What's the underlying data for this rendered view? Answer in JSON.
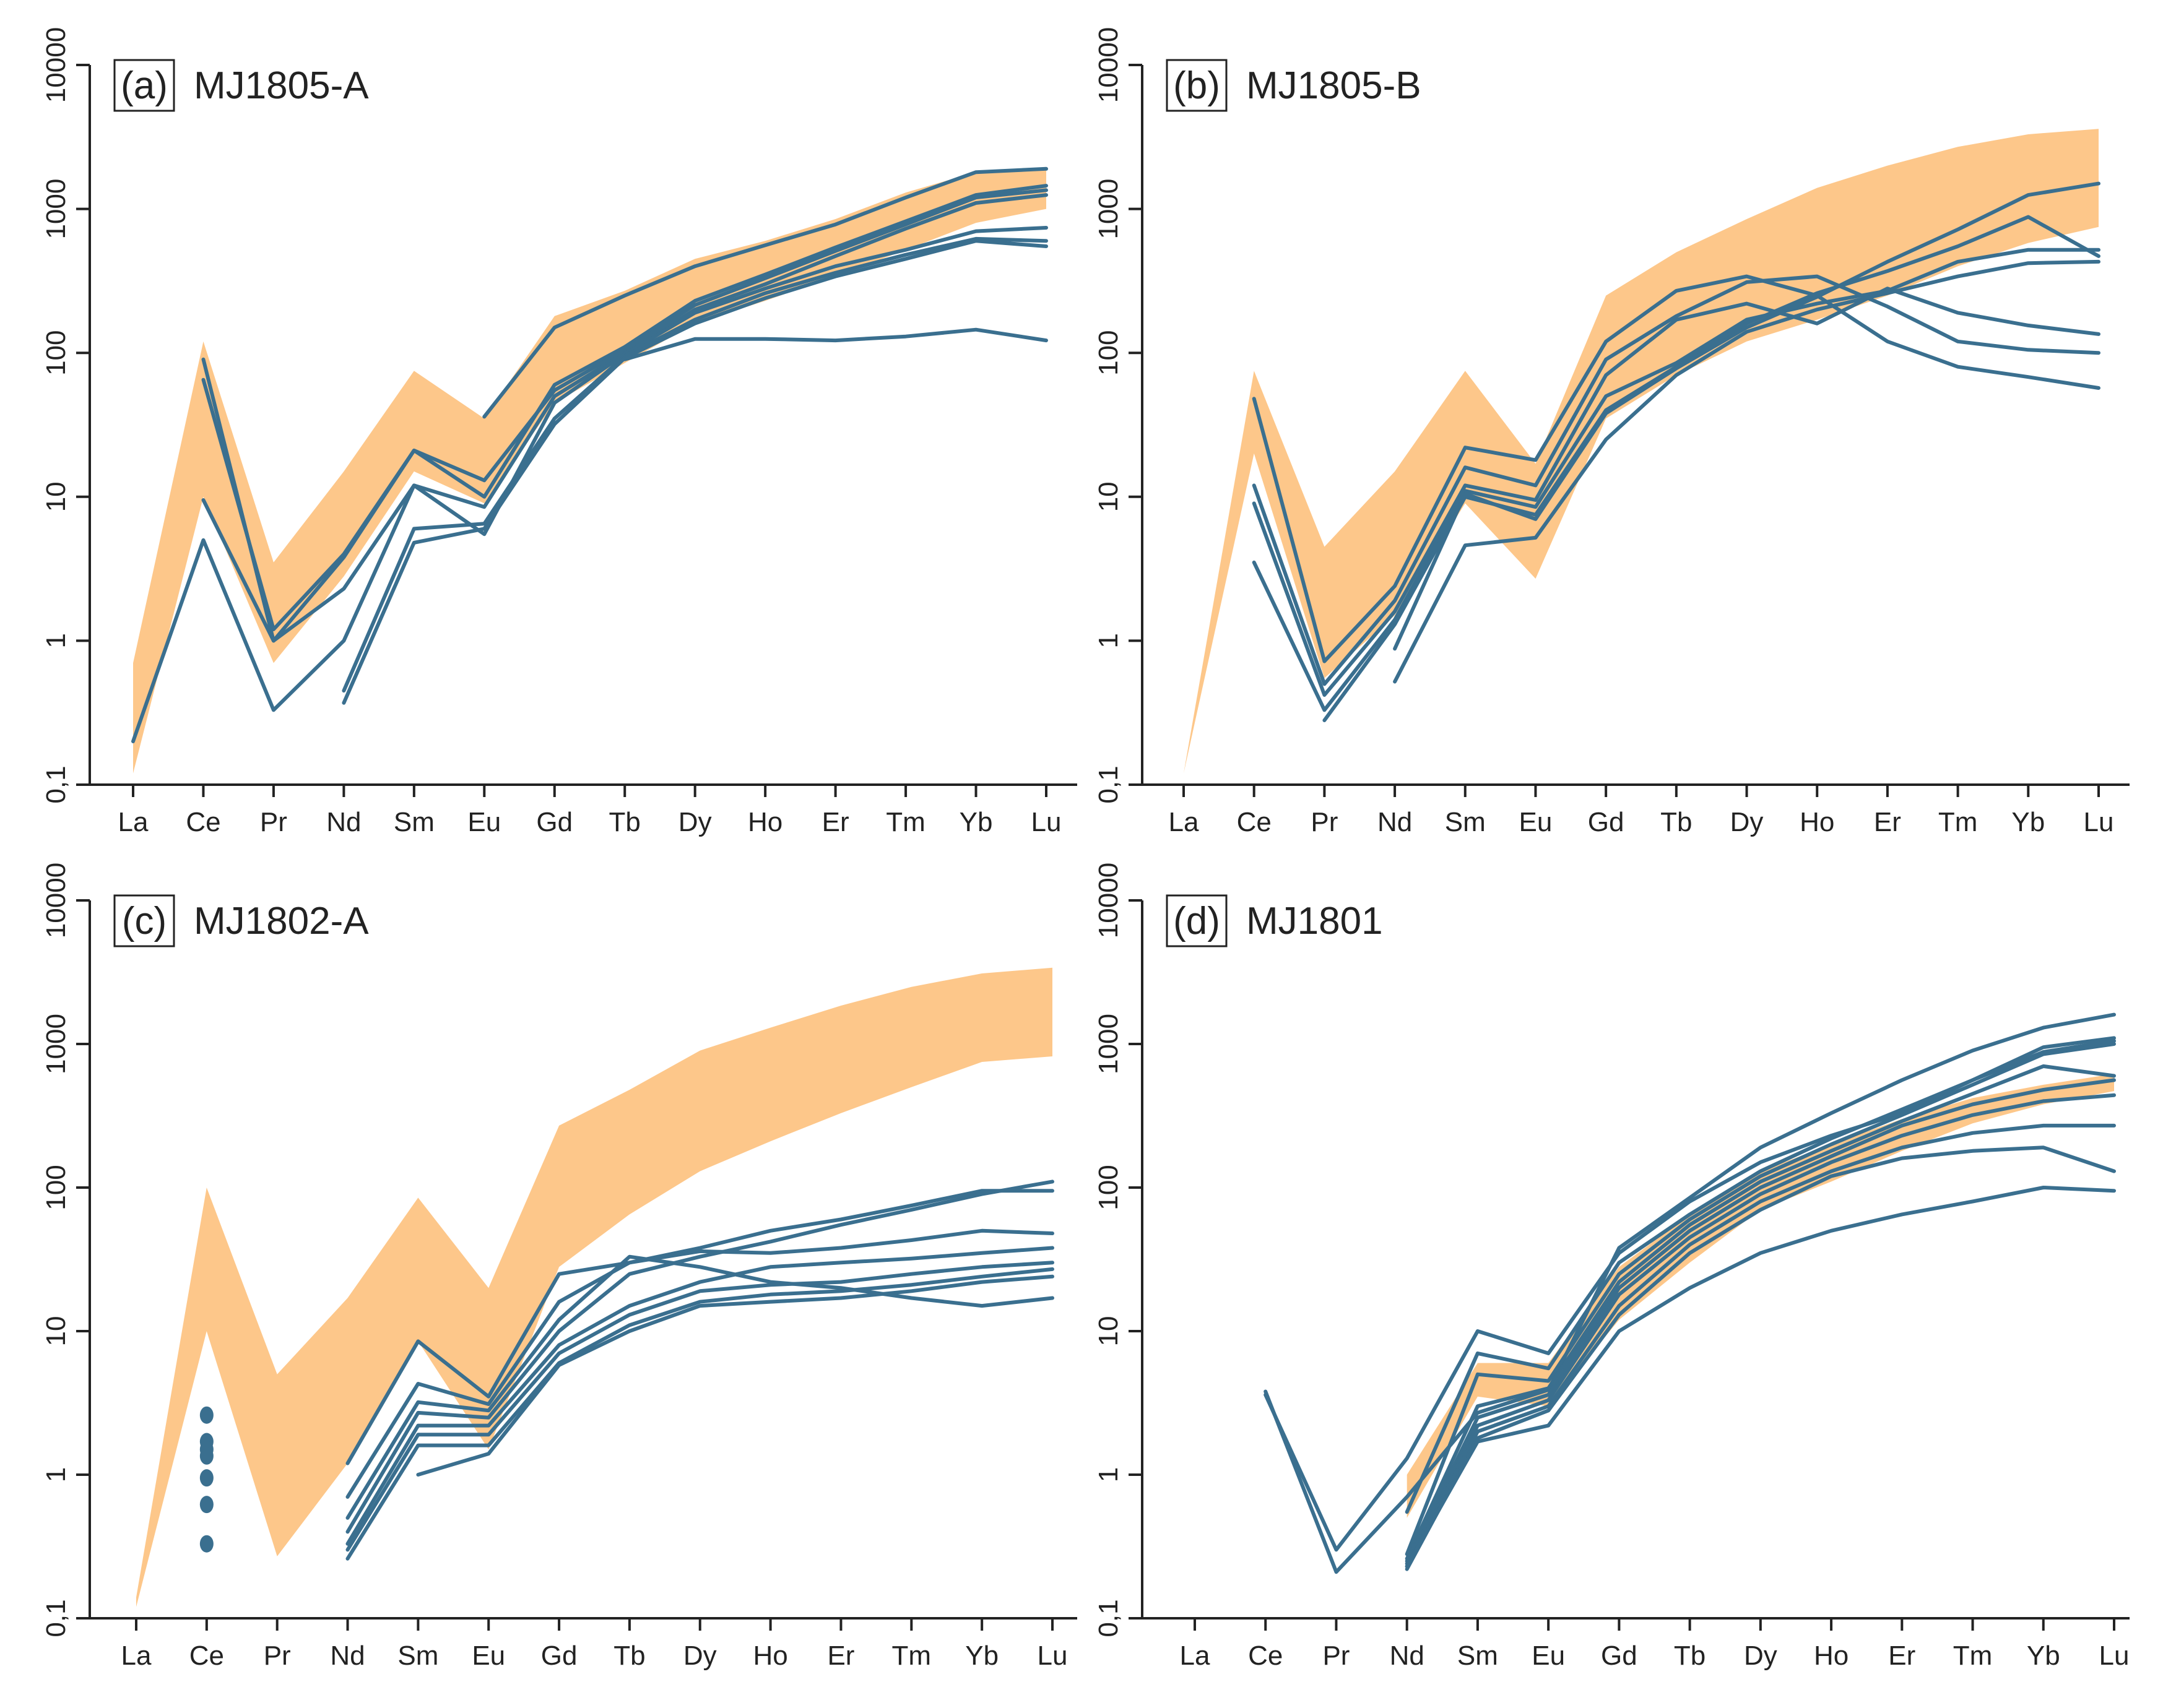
{
  "figure": {
    "colors": {
      "envelope": "#FDC78A",
      "series": "#3A6F8F",
      "axis": "#222222"
    }
  },
  "chart_data": [
    {
      "type": "line",
      "panel_label": "(a)",
      "title": "MJ1805-A",
      "categories": [
        "La",
        "Ce",
        "Pr",
        "Nd",
        "Sm",
        "Eu",
        "Gd",
        "Tb",
        "Dy",
        "Ho",
        "Er",
        "Tm",
        "Yb",
        "Lu"
      ],
      "yscale": "log",
      "ylim": [
        0.1,
        10000
      ],
      "ytick_labels": [
        "0,1",
        "1",
        "10",
        "100",
        "1000",
        "10000"
      ],
      "grid": false,
      "envelope": {
        "upper": [
          0.7,
          120,
          3.5,
          15,
          75,
          35,
          180,
          270,
          450,
          600,
          850,
          1300,
          1800,
          1900
        ],
        "lower": [
          0.12,
          10,
          0.7,
          2.8,
          15,
          9,
          45,
          85,
          160,
          230,
          340,
          520,
          800,
          1000
        ]
      },
      "series": [
        {
          "values": [
            null,
            90,
            1.0,
            3.8,
            21,
            10,
            60,
            110,
            230,
            350,
            540,
            820,
            1250,
            1450
          ]
        },
        {
          "values": [
            null,
            65,
            1.2,
            4.0,
            21,
            13,
            55,
            105,
            215,
            330,
            510,
            780,
            1200,
            1350
          ]
        },
        {
          "values": [
            null,
            9.5,
            1.0,
            2.3,
            12,
            8.5,
            50,
            100,
            200,
            300,
            470,
            730,
            1100,
            1250
          ]
        },
        {
          "values": [
            0.2,
            5.0,
            0.33,
            1.0,
            12,
            5.5,
            45,
            98,
            190,
            280,
            400,
            520,
            700,
            740
          ]
        },
        {
          "values": [
            null,
            null,
            null,
            0.45,
            6,
            6.5,
            35,
            95,
            170,
            260,
            360,
            480,
            620,
            600
          ]
        },
        {
          "values": [
            null,
            null,
            null,
            0.37,
            4.8,
            6.0,
            32,
            92,
            160,
            240,
            340,
            450,
            600,
            550
          ]
        },
        {
          "values": [
            null,
            null,
            null,
            null,
            null,
            36,
            150,
            250,
            400,
            560,
            780,
            1200,
            1800,
            1900
          ]
        },
        {
          "values": [
            null,
            null,
            null,
            null,
            null,
            null,
            null,
            90,
            125,
            125,
            122,
            130,
            145,
            122
          ]
        }
      ]
    },
    {
      "type": "line",
      "panel_label": "(b)",
      "title": "MJ1805-B",
      "categories": [
        "La",
        "Ce",
        "Pr",
        "Nd",
        "Sm",
        "Eu",
        "Gd",
        "Tb",
        "Dy",
        "Ho",
        "Er",
        "Tm",
        "Yb",
        "Lu"
      ],
      "yscale": "log",
      "ylim": [
        0.1,
        10000
      ],
      "ytick_labels": [
        "0,1",
        "1",
        "10",
        "100",
        "1000",
        "10000"
      ],
      "grid": false,
      "envelope": {
        "upper": [
          0.12,
          75,
          4.5,
          15,
          75,
          17,
          250,
          500,
          850,
          1400,
          2000,
          2700,
          3300,
          3600
        ],
        "lower": [
          0.12,
          20,
          0.55,
          1.5,
          9,
          2.7,
          35,
          70,
          120,
          170,
          250,
          400,
          580,
          750
        ]
      },
      "series": [
        {
          "values": [
            null,
            48,
            0.72,
            2.4,
            22,
            18,
            120,
            270,
            340,
            250,
            120,
            80,
            68,
            57
          ]
        },
        {
          "values": [
            null,
            12,
            0.5,
            1.9,
            16,
            12,
            90,
            180,
            310,
            340,
            210,
            120,
            105,
            100
          ]
        },
        {
          "values": [
            null,
            9,
            0.42,
            1.6,
            12,
            9.5,
            70,
            170,
            220,
            160,
            280,
            190,
            155,
            135
          ]
        },
        {
          "values": [
            null,
            3.5,
            0.33,
            1.4,
            11,
            8.5,
            50,
            85,
            170,
            220,
            270,
            430,
            520,
            520
          ]
        },
        {
          "values": [
            null,
            null,
            0.28,
            1.3,
            10,
            7.5,
            40,
            80,
            160,
            260,
            370,
            550,
            880,
            470
          ]
        },
        {
          "values": [
            null,
            null,
            null,
            0.88,
            10.5,
            7.0,
            38,
            78,
            150,
            245,
            430,
            720,
            1250,
            1500
          ]
        },
        {
          "values": [
            null,
            null,
            null,
            0.52,
            4.6,
            5.2,
            25,
            70,
            140,
            200,
            260,
            340,
            420,
            430
          ]
        }
      ]
    },
    {
      "type": "line",
      "panel_label": "(c)",
      "title": "MJ1802-A",
      "categories": [
        "La",
        "Ce",
        "Pr",
        "Nd",
        "Sm",
        "Eu",
        "Gd",
        "Tb",
        "Dy",
        "Ho",
        "Er",
        "Tm",
        "Yb",
        "Lu"
      ],
      "yscale": "log",
      "ylim": [
        0.1,
        10000
      ],
      "ytick_labels": [
        "0,1",
        "1",
        "10",
        "100",
        "1000",
        "10000"
      ],
      "grid": false,
      "envelope": {
        "upper": [
          0.14,
          100,
          5,
          17,
          85,
          20,
          270,
          480,
          900,
          1300,
          1850,
          2500,
          3100,
          3400
        ],
        "lower": [
          0.12,
          10,
          0.27,
          1.2,
          8.5,
          1.5,
          28,
          65,
          130,
          210,
          330,
          500,
          750,
          820
        ]
      },
      "points": {
        "category": "Ce",
        "values": [
          2.6,
          1.7,
          1.5,
          1.35,
          0.95,
          0.62,
          0.33
        ]
      },
      "series": [
        {
          "values": [
            null,
            null,
            null,
            1.2,
            8.5,
            3.5,
            25,
            30,
            38,
            50,
            60,
            75,
            95,
            95
          ]
        },
        {
          "values": [
            null,
            null,
            null,
            0.7,
            4.3,
            3.1,
            16,
            30,
            36,
            35,
            38,
            43,
            50,
            48
          ]
        },
        {
          "values": [
            null,
            null,
            null,
            0.5,
            3.2,
            2.8,
            12,
            33,
            28,
            22,
            20,
            17,
            15,
            17
          ]
        },
        {
          "values": [
            null,
            null,
            null,
            0.4,
            2.7,
            2.5,
            10,
            25,
            33,
            42,
            55,
            70,
            90,
            110
          ]
        },
        {
          "values": [
            null,
            null,
            null,
            0.33,
            2.2,
            2.2,
            8,
            15,
            22,
            28,
            30,
            32,
            35,
            38
          ]
        },
        {
          "values": [
            null,
            null,
            null,
            0.3,
            1.9,
            1.9,
            7,
            13,
            19,
            21,
            22,
            25,
            28,
            30
          ]
        },
        {
          "values": [
            null,
            null,
            null,
            0.26,
            1.6,
            1.6,
            6,
            11,
            16,
            18,
            19,
            21,
            24,
            27
          ]
        },
        {
          "values": [
            null,
            null,
            null,
            null,
            1.0,
            1.4,
            5.8,
            10,
            15,
            16,
            17,
            19,
            22,
            24
          ]
        }
      ]
    },
    {
      "type": "line",
      "panel_label": "(d)",
      "title": "MJ1801",
      "categories": [
        "La",
        "Ce",
        "Pr",
        "Nd",
        "Sm",
        "Eu",
        "Gd",
        "Tb",
        "Dy",
        "Ho",
        "Er",
        "Tm",
        "Yb",
        "Lu"
      ],
      "yscale": "log",
      "ylim": [
        0.1,
        10000
      ],
      "ytick_labels": [
        "0,1",
        "1",
        "10",
        "100",
        "1000",
        "10000"
      ],
      "grid": false,
      "envelope": {
        "upper": [
          null,
          null,
          null,
          1.0,
          6,
          6,
          28,
          65,
          130,
          200,
          300,
          420,
          520,
          620
        ],
        "lower": [
          null,
          null,
          null,
          0.5,
          3.5,
          3,
          12,
          30,
          70,
          110,
          180,
          280,
          380,
          470
        ]
      },
      "series": [
        {
          "values": [
            null,
            3.8,
            0.21,
            0.7,
            2.7,
            3.9,
            38,
            85,
            190,
            330,
            560,
            900,
            1300,
            1600
          ]
        },
        {
          "values": [
            null,
            3.6,
            0.3,
            1.3,
            10,
            7,
            35,
            80,
            150,
            230,
            330,
            560,
            950,
            1100
          ]
        },
        {
          "values": [
            null,
            null,
            null,
            0.55,
            7,
            5.5,
            30,
            65,
            130,
            220,
            350,
            560,
            880,
            1050
          ]
        },
        {
          "values": [
            null,
            null,
            null,
            0.28,
            5,
            4.5,
            25,
            60,
            120,
            200,
            320,
            520,
            850,
            1000
          ]
        },
        {
          "values": [
            null,
            null,
            null,
            0.26,
            3,
            4,
            22,
            55,
            110,
            180,
            290,
            450,
            700,
            600
          ]
        },
        {
          "values": [
            null,
            null,
            null,
            0.25,
            2.5,
            3.6,
            20,
            50,
            100,
            165,
            270,
            380,
            480,
            560
          ]
        },
        {
          "values": [
            null,
            null,
            null,
            0.24,
            2.2,
            3.3,
            18,
            45,
            90,
            150,
            230,
            320,
            400,
            440
          ]
        },
        {
          "values": [
            null,
            null,
            null,
            0.23,
            2.0,
            3.0,
            15,
            40,
            80,
            130,
            190,
            240,
            270,
            270
          ]
        },
        {
          "values": [
            null,
            null,
            null,
            0.22,
            1.8,
            2.8,
            13,
            35,
            70,
            120,
            160,
            180,
            190,
            130
          ]
        },
        {
          "values": [
            null,
            null,
            null,
            0.23,
            1.7,
            2.2,
            10,
            20,
            35,
            50,
            65,
            80,
            100,
            95
          ]
        }
      ]
    }
  ]
}
